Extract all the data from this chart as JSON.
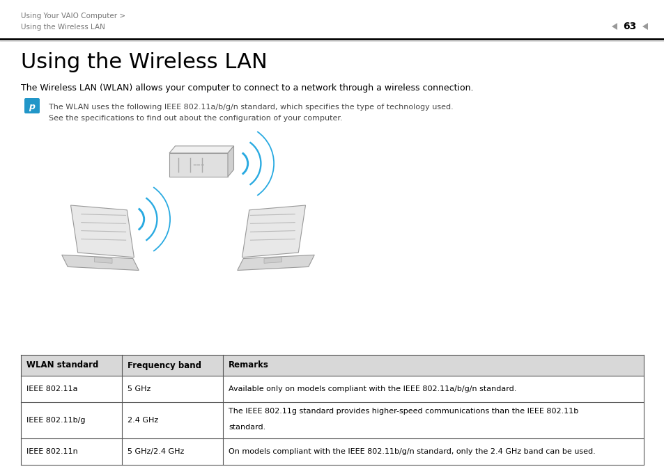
{
  "bg_color": "#ffffff",
  "breadcrumb_line1": "Using Your VAIO Computer >",
  "breadcrumb_line2": "Using the Wireless LAN",
  "page_number": "63",
  "title": "Using the Wireless LAN",
  "subtitle": "The Wireless LAN (WLAN) allows your computer to connect to a network through a wireless connection.",
  "note_line1": "The WLAN uses the following IEEE 802.11a/b/g/n standard, which specifies the type of technology used.",
  "note_line2": "See the specifications to find out about the configuration of your computer.",
  "icon_color": "#2196c8",
  "table_header": [
    "WLAN standard",
    "Frequency band",
    "Remarks"
  ],
  "table_rows": [
    [
      "IEEE 802.11a",
      "5 GHz",
      "Available only on models compliant with the IEEE 802.11a/b/g/n standard."
    ],
    [
      "IEEE 802.11b/g",
      "2.4 GHz",
      "The IEEE 802.11g standard provides higher-speed communications than the IEEE 802.11b\nstandard."
    ],
    [
      "IEEE 802.11n",
      "5 GHz/2.4 GHz",
      "On models compliant with the IEEE 802.11b/g/n standard, only the 2.4 GHz band can be used."
    ]
  ],
  "breadcrumb_color": "#777777",
  "gray_color": "#999999",
  "light_gray": "#cccccc",
  "mid_gray": "#aaaaaa",
  "table_header_bg": "#d8d8d8",
  "wifi_color": "#29aae1"
}
